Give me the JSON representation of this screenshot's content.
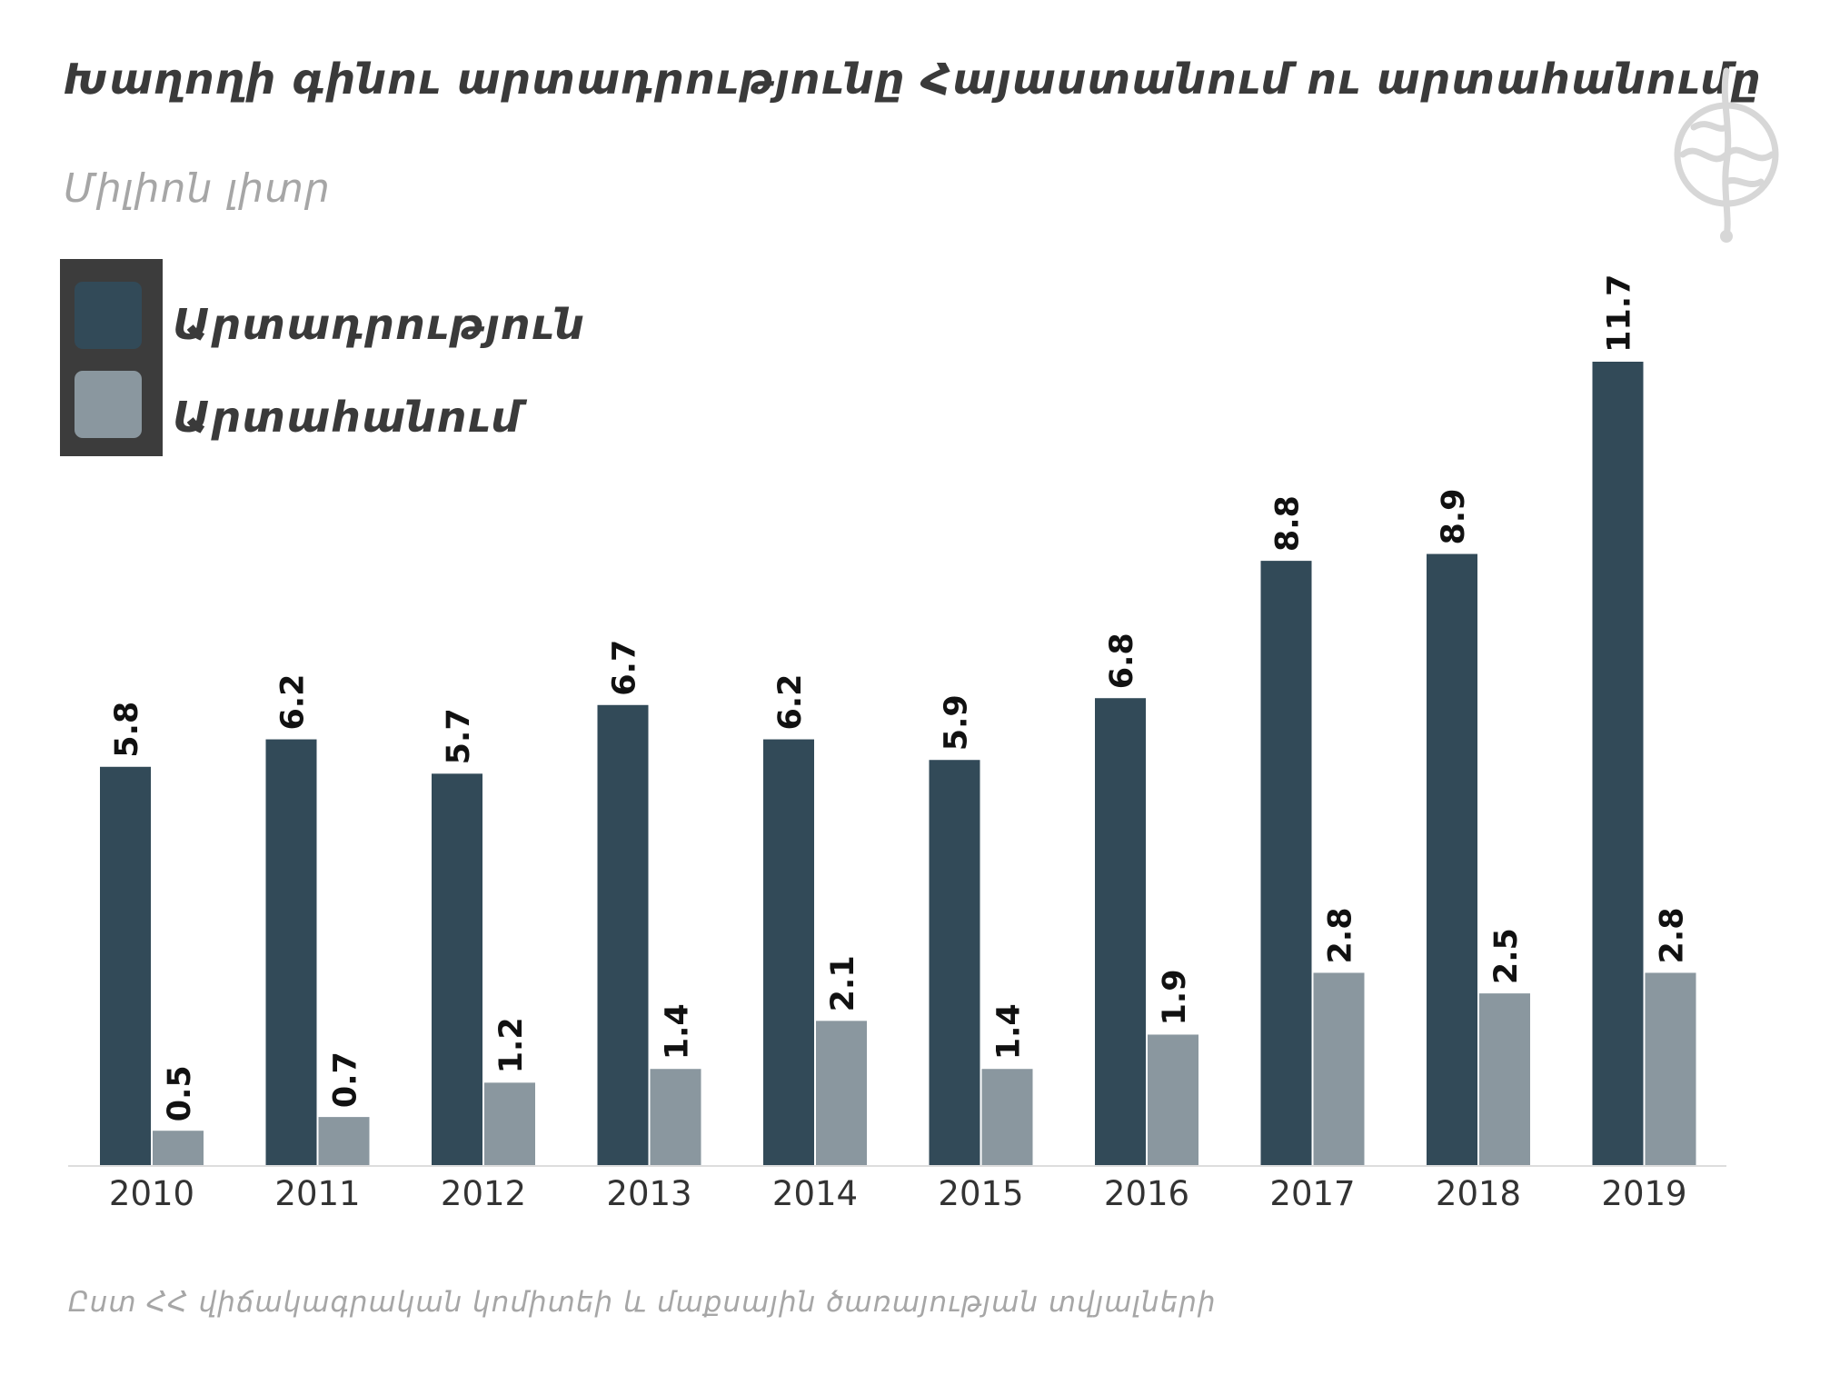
{
  "title": "Խաղողի գինու արտադրությունը Հայաստանում ու արտահանումը",
  "subtitle": "Միլիոն լիտր",
  "source": "Ըստ ՀՀ վիճակագրական կոմիտեի և մաքսային ծառայության տվյալների",
  "logo_icon": "publisher-logo-icon",
  "colors": {
    "production": "#324a58",
    "export": "#8a979f",
    "legend_bg": "#3c3c3c",
    "axis": "#dddddd"
  },
  "chart_data": {
    "type": "bar",
    "title": "Խաղողի գինու արտադրությունը Հայաստանում ու արտահանումը",
    "subtitle": "Միլիոն լիտր",
    "categories": [
      "2010",
      "2011",
      "2012",
      "2013",
      "2014",
      "2015",
      "2016",
      "2017",
      "2018",
      "2019"
    ],
    "series": [
      {
        "name": "Արտադրություն",
        "values": [
          5.8,
          6.2,
          5.7,
          6.7,
          6.2,
          5.9,
          6.8,
          8.8,
          8.9,
          11.7
        ]
      },
      {
        "name": "Արտահանում",
        "values": [
          0.5,
          0.7,
          1.2,
          1.4,
          2.1,
          1.4,
          1.9,
          2.8,
          2.5,
          2.8
        ]
      }
    ],
    "ylim": [
      0,
      11.7
    ],
    "grid": false,
    "legend_position": "top-left",
    "data_labels": true
  }
}
